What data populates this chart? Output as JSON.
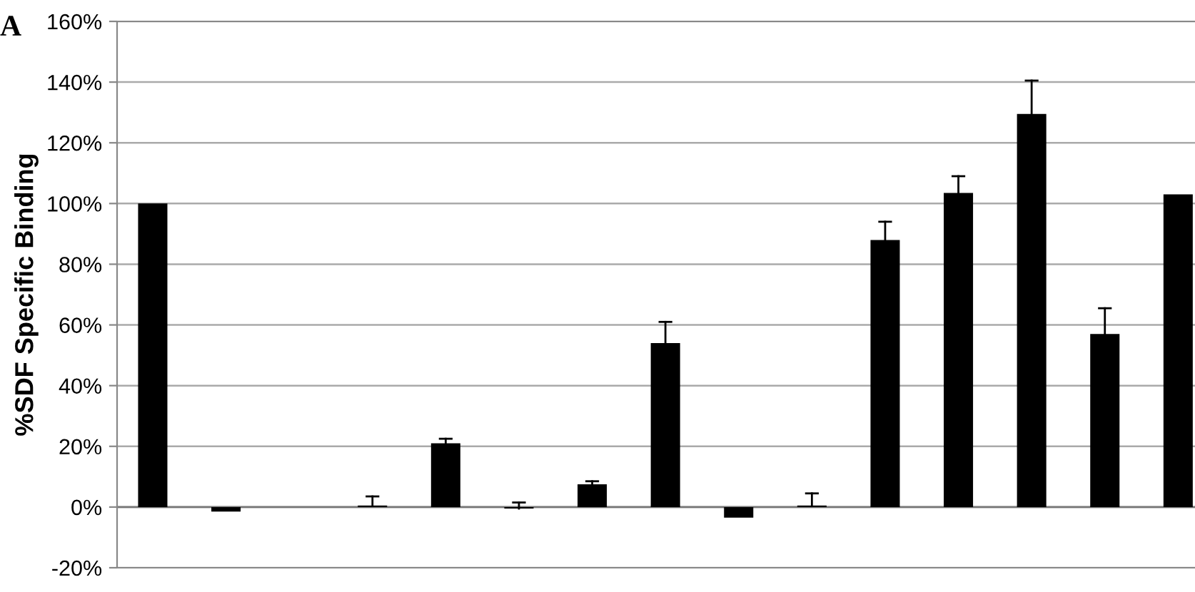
{
  "chart_data": {
    "type": "bar",
    "ylabel": "%SDF Specific Binding",
    "annotations": [
      "A"
    ],
    "categories": [
      null,
      null,
      null,
      null,
      null,
      null,
      null,
      null,
      null,
      null,
      null,
      null,
      null,
      null,
      null
    ],
    "values": [
      100,
      -1.5,
      0,
      0.5,
      21,
      -0.5,
      7.5,
      54,
      -3.5,
      0.5,
      88,
      103.5,
      129.5,
      57,
      103
    ],
    "errors": [
      null,
      null,
      null,
      [
        0.5,
        3.5
      ],
      [
        21,
        22.5
      ],
      [
        -0.5,
        1.5
      ],
      [
        7.5,
        8.5
      ],
      [
        54,
        61
      ],
      null,
      [
        0.5,
        4.5
      ],
      [
        88,
        94
      ],
      [
        103.5,
        109
      ],
      [
        129.5,
        140.5
      ],
      [
        57,
        65.5
      ],
      null
    ],
    "color": "#000000",
    "ylim": [
      -20,
      160
    ],
    "yticks": [
      {
        "value": -20,
        "label": "-20%"
      },
      {
        "value": 0,
        "label": "0%"
      },
      {
        "value": 20,
        "label": "20%"
      },
      {
        "value": 40,
        "label": "40%"
      },
      {
        "value": 60,
        "label": "60%"
      },
      {
        "value": 80,
        "label": "80%"
      },
      {
        "value": 100,
        "label": "100%"
      },
      {
        "value": 120,
        "label": "120%"
      },
      {
        "value": 140,
        "label": "140%"
      },
      {
        "value": 160,
        "label": "160%"
      }
    ],
    "grid": "y"
  }
}
